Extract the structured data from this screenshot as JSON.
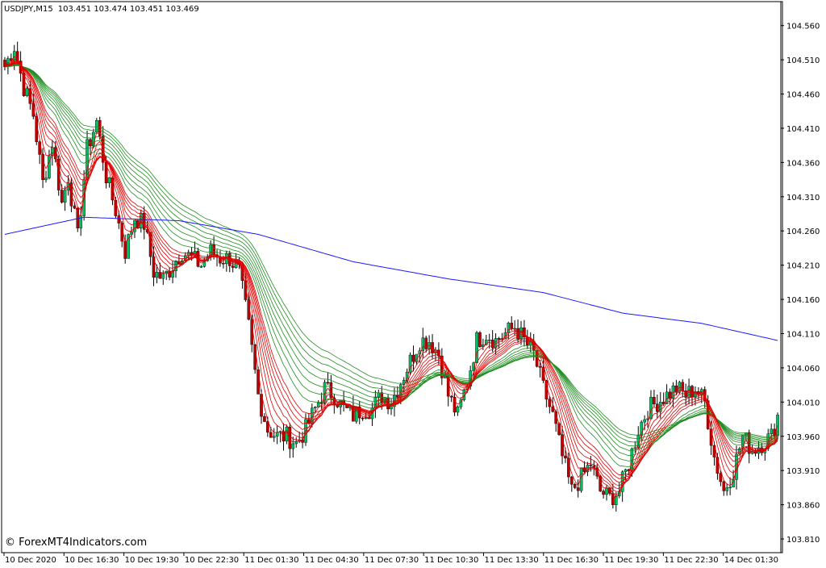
{
  "header": {
    "symbol": "USDJPY,M15",
    "ohlc": "103.451 103.474 103.451 103.469"
  },
  "watermark": "© ForexMT4Indicators.com",
  "colors": {
    "bull": "#00c060",
    "bear": "#c00000",
    "wick": "#000000",
    "ma_fast": "#e00000",
    "ma_slow": "#1f8c1f",
    "ma_long": "#1a1aff",
    "grid_border": "#000000"
  },
  "chart_data": {
    "type": "candlestick",
    "ylim": [
      103.79,
      104.595
    ],
    "y_ticks": [
      "104.560",
      "104.510",
      "104.460",
      "104.410",
      "104.360",
      "104.310",
      "104.260",
      "104.210",
      "104.160",
      "104.110",
      "104.060",
      "104.010",
      "103.960",
      "103.910",
      "103.860",
      "103.810"
    ],
    "x_ticks": [
      "10 Dec 2020",
      "10 Dec 16:30",
      "10 Dec 19:30",
      "10 Dec 22:30",
      "11 Dec 01:30",
      "11 Dec 04:30",
      "11 Dec 07:30",
      "11 Dec 10:30",
      "11 Dec 13:30",
      "11 Dec 16:30",
      "11 Dec 19:30",
      "11 Dec 22:30",
      "14 Dec 01:30"
    ],
    "close_anchors": [
      [
        0,
        104.5
      ],
      [
        3,
        104.53
      ],
      [
        6,
        104.47
      ],
      [
        9,
        104.43
      ],
      [
        12,
        104.33
      ],
      [
        15,
        104.39
      ],
      [
        18,
        104.3
      ],
      [
        20,
        104.34
      ],
      [
        23,
        104.25
      ],
      [
        26,
        104.38
      ],
      [
        29,
        104.42
      ],
      [
        32,
        104.34
      ],
      [
        35,
        104.29
      ],
      [
        38,
        104.23
      ],
      [
        41,
        104.28
      ],
      [
        44,
        104.27
      ],
      [
        47,
        104.2
      ],
      [
        50,
        104.19
      ],
      [
        53,
        104.21
      ],
      [
        56,
        104.23
      ],
      [
        59,
        104.22
      ],
      [
        62,
        104.21
      ],
      [
        65,
        104.23
      ],
      [
        68,
        104.22
      ],
      [
        71,
        104.22
      ],
      [
        74,
        104.2
      ],
      [
        77,
        104.12
      ],
      [
        80,
        104.02
      ],
      [
        83,
        103.97
      ],
      [
        86,
        103.96
      ],
      [
        89,
        103.96
      ],
      [
        92,
        103.95
      ],
      [
        95,
        103.97
      ],
      [
        98,
        104.0
      ],
      [
        101,
        104.03
      ],
      [
        104,
        104.02
      ],
      [
        107,
        104.0
      ],
      [
        110,
        103.99
      ],
      [
        113,
        104.0
      ],
      [
        116,
        104.0
      ],
      [
        119,
        104.02
      ],
      [
        122,
        104.01
      ],
      [
        125,
        104.04
      ],
      [
        128,
        104.07
      ],
      [
        131,
        104.1
      ],
      [
        134,
        104.1
      ],
      [
        137,
        104.08
      ],
      [
        140,
        104.02
      ],
      [
        143,
        103.99
      ],
      [
        146,
        104.04
      ],
      [
        149,
        104.1
      ],
      [
        152,
        104.11
      ],
      [
        155,
        104.1
      ],
      [
        158,
        104.11
      ],
      [
        161,
        104.12
      ],
      [
        164,
        104.1
      ],
      [
        167,
        104.08
      ],
      [
        170,
        104.03
      ],
      [
        173,
        103.99
      ],
      [
        176,
        103.93
      ],
      [
        179,
        103.88
      ],
      [
        182,
        103.9
      ],
      [
        185,
        103.92
      ],
      [
        188,
        103.88
      ],
      [
        191,
        103.87
      ],
      [
        194,
        103.88
      ],
      [
        197,
        103.92
      ],
      [
        200,
        103.97
      ],
      [
        203,
        104.0
      ],
      [
        206,
        104.01
      ],
      [
        209,
        104.02
      ],
      [
        212,
        104.03
      ],
      [
        215,
        104.02
      ],
      [
        218,
        104.03
      ],
      [
        221,
        104.01
      ],
      [
        224,
        103.93
      ],
      [
        227,
        103.88
      ],
      [
        230,
        103.91
      ],
      [
        233,
        103.96
      ],
      [
        236,
        103.94
      ],
      [
        239,
        103.95
      ],
      [
        242,
        103.96
      ],
      [
        244,
        103.99
      ]
    ],
    "ma_long_anchors": [
      [
        0,
        104.255
      ],
      [
        25,
        104.28
      ],
      [
        55,
        104.275
      ],
      [
        80,
        104.255
      ],
      [
        110,
        104.215
      ],
      [
        140,
        104.19
      ],
      [
        170,
        104.17
      ],
      [
        195,
        104.14
      ],
      [
        220,
        104.125
      ],
      [
        244,
        104.1
      ]
    ],
    "ma_fast_count": 8,
    "ma_slow_count": 8
  }
}
